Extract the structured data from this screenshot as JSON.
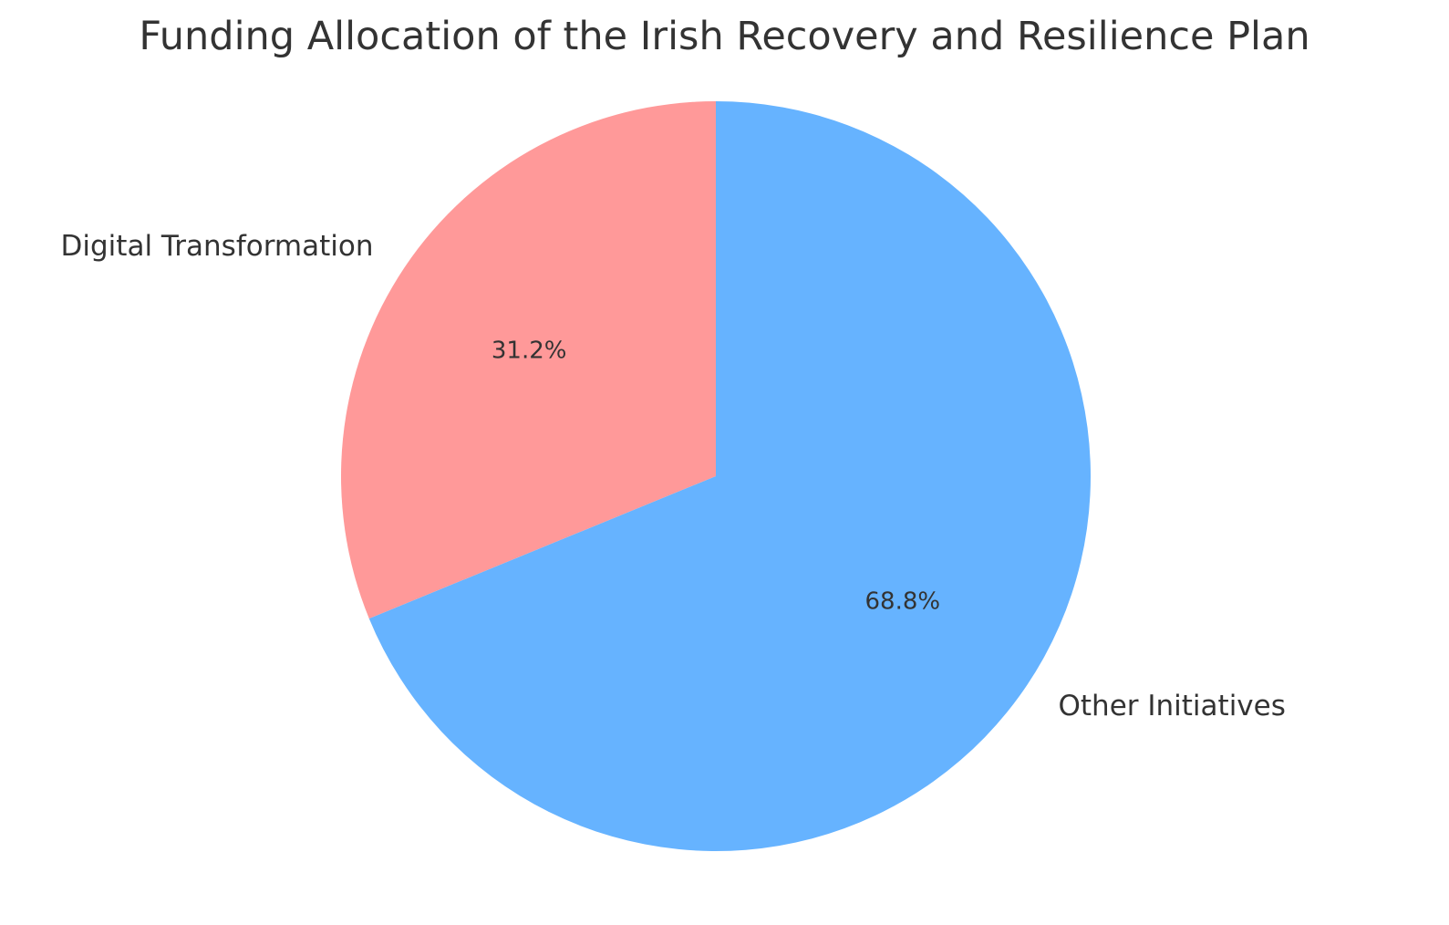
{
  "chart_data": {
    "type": "pie",
    "title": "Funding Allocation of the Irish Recovery and Resilience Plan",
    "start_angle_deg": 90,
    "direction": "counterclockwise",
    "slices": [
      {
        "label": "Digital Transformation",
        "value": 31.2,
        "pct_label": "31.2%",
        "color": "#ff9999"
      },
      {
        "label": "Other Initiatives",
        "value": 68.8,
        "pct_label": "68.8%",
        "color": "#66b3ff"
      }
    ]
  }
}
